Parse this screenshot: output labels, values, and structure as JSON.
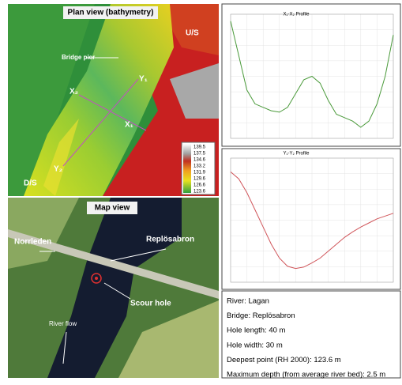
{
  "plan_view": {
    "title": "Plan view (bathymetry)",
    "labels": [
      "U/S",
      "Bridge pier",
      "X₂",
      "Y₁",
      "X₁",
      "Y₂",
      "D/S"
    ],
    "legend": [
      139.5,
      137.5,
      134.6,
      133.2,
      131.9,
      129.6,
      126.6,
      123.6
    ]
  },
  "map_view": {
    "title": "Map view",
    "labels": [
      "Norrleden",
      "Replösabron",
      "Scour hole",
      "River flow"
    ]
  },
  "info": [
    "River: Lagan",
    "Bridge: Replösabron",
    "Hole length: 40 m",
    "Hole width: 30 m",
    "Deepest point (RH 2000):  123.6 m",
    "Maximum depth (from average river bed): 2.5 m"
  ],
  "chart_data": [
    {
      "type": "line",
      "title": "X₁-X₂ Profile",
      "x": [
        0,
        1,
        2,
        3,
        4,
        5,
        6,
        7,
        8,
        9,
        10,
        11,
        12,
        13,
        14,
        15,
        16,
        17,
        18,
        19,
        20
      ],
      "xlim": [
        0,
        20
      ],
      "ylim": [
        122,
        140
      ],
      "series": [
        {
          "color": "#4a9a3a",
          "values": [
            139,
            134,
            129,
            127,
            126.5,
            126,
            125.8,
            126.5,
            128.5,
            130.5,
            131,
            130,
            127.5,
            125.5,
            125,
            124.5,
            123.6,
            124.5,
            127,
            131,
            137
          ]
        }
      ]
    },
    {
      "type": "line",
      "title": "Y₁-Y₂ Profile",
      "x": [
        0,
        1,
        2,
        3,
        4,
        5,
        6,
        7,
        8,
        9,
        10,
        11,
        12,
        13,
        14,
        15,
        16,
        17,
        18,
        19,
        20
      ],
      "xlim": [
        0,
        20
      ],
      "ylim": [
        122,
        140
      ],
      "series": [
        {
          "color": "#d0555a",
          "values": [
            138,
            137,
            135,
            132.5,
            130,
            127.5,
            125.5,
            124.3,
            124,
            124.2,
            124.8,
            125.5,
            126.5,
            127.5,
            128.5,
            129.3,
            130,
            130.6,
            131.2,
            131.6,
            132
          ]
        }
      ]
    }
  ]
}
